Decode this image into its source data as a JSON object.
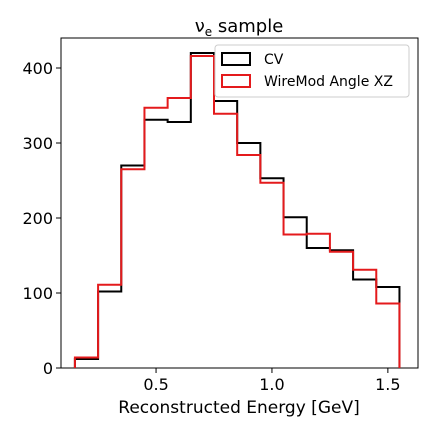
{
  "chart_data": {
    "type": "histogram",
    "title_prefix": "ν",
    "title_sub": "e",
    "title_suffix": " sample",
    "xlabel": "Reconstructed Energy [GeV]",
    "ylabel": "",
    "xlim": [
      0.09,
      1.63
    ],
    "ylim": [
      0,
      440
    ],
    "xticks": [
      0.5,
      1.0,
      1.5
    ],
    "xtick_labels": [
      "0.5",
      "1.0",
      "1.5"
    ],
    "yticks": [
      0,
      100,
      200,
      300,
      400
    ],
    "ytick_labels": [
      "0",
      "100",
      "200",
      "300",
      "400"
    ],
    "grid": false,
    "legend_position": "top-right",
    "bin_edges": [
      0.15,
      0.25,
      0.35,
      0.45,
      0.55,
      0.65,
      0.75,
      0.85,
      0.95,
      1.05,
      1.15,
      1.25,
      1.35,
      1.45,
      1.55
    ],
    "series": [
      {
        "name": "CV",
        "color": "#000000",
        "values": [
          12,
          102,
          270,
          331,
          328,
          420,
          356,
          300,
          253,
          201,
          160,
          157,
          118,
          108
        ]
      },
      {
        "name": "WireMod Angle XZ",
        "color": "#e41a1c",
        "values": [
          14,
          111,
          265,
          347,
          360,
          416,
          339,
          284,
          247,
          178,
          179,
          155,
          131,
          86
        ]
      }
    ]
  }
}
